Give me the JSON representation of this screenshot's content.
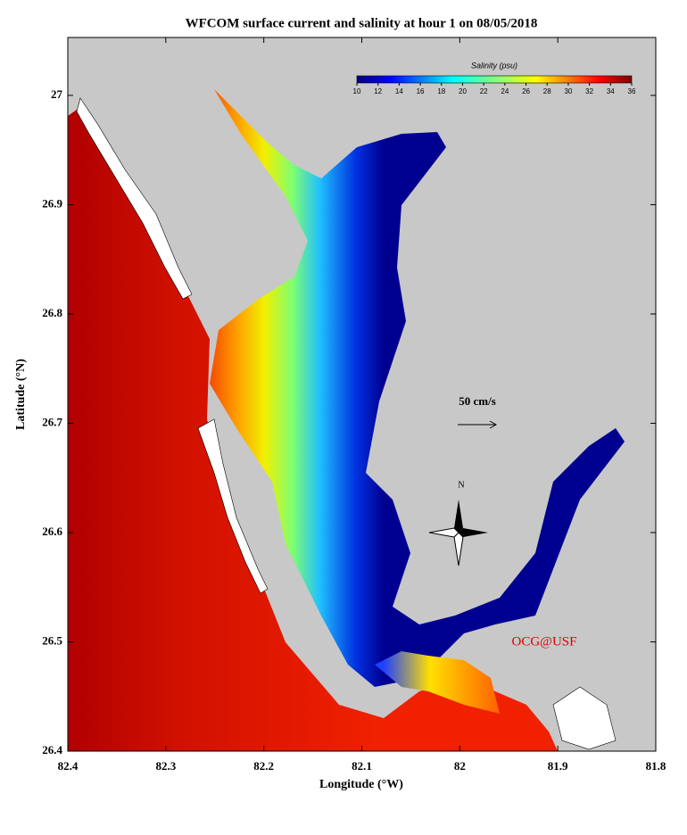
{
  "title": "WFCOM surface current and salinity at hour 1 on 08/05/2018",
  "x_axis": {
    "label": "Longitude (°W)",
    "lim": [
      82.4,
      81.8
    ],
    "ticks": [
      82.4,
      82.3,
      82.2,
      82.1,
      82.0,
      81.9,
      81.8
    ]
  },
  "y_axis": {
    "label": "Latitude (°N)",
    "lim": [
      26.4,
      27.053
    ],
    "ticks": [
      26.4,
      26.5,
      26.6,
      26.7,
      26.8,
      26.9,
      27.0
    ]
  },
  "colorbar": {
    "title": "Salinity (psu)",
    "lim": [
      10,
      36
    ],
    "ticks": [
      10,
      12,
      14,
      16,
      18,
      20,
      22,
      24,
      26,
      28,
      30,
      32,
      34,
      36
    ]
  },
  "scale_arrow": {
    "label": "50 cm/s"
  },
  "compass": {
    "label": "N"
  },
  "credit": "OCG@USF"
}
